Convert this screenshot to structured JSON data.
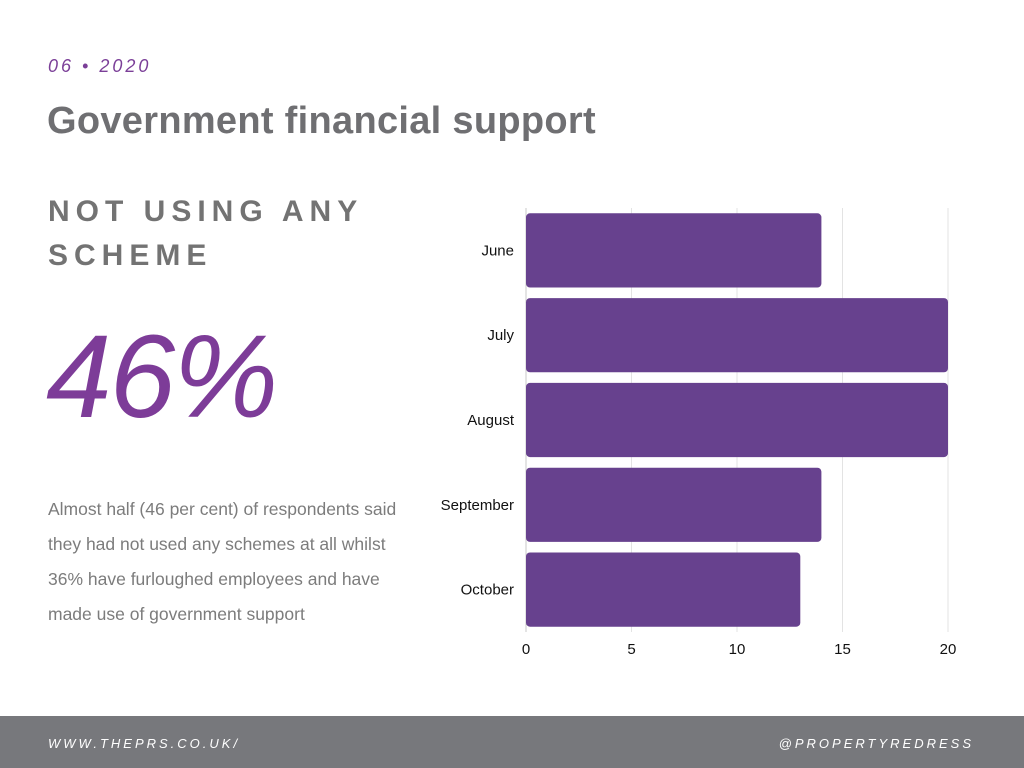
{
  "header": {
    "date": "06 • 2020",
    "title": "Government financial support"
  },
  "stat": {
    "subtitle": "NOT USING ANY SCHEME",
    "value": "46%",
    "description": "Almost half (46 per cent) of respondents said they had not used any schemes at all whilst 36% have furloughed employees and have made use of government support"
  },
  "chart_data": {
    "type": "bar",
    "orientation": "horizontal",
    "categories": [
      "June",
      "July",
      "August",
      "September",
      "October"
    ],
    "values": [
      14,
      20,
      20,
      14,
      13
    ],
    "title": "",
    "xlabel": "",
    "ylabel": "",
    "xlim": [
      0,
      20
    ],
    "xticks": [
      "0",
      "5",
      "10",
      "15",
      "20"
    ],
    "grid": true,
    "bar_color": "#67418e",
    "grid_color": "#e3e3e3"
  },
  "footer": {
    "website": "WWW.THEPRS.CO.UK/",
    "handle": "@PROPERTYREDRESS"
  },
  "colors": {
    "accent": "#7d3c98",
    "title_gray": "#6f6f72",
    "footer_bg": "#77787c"
  }
}
